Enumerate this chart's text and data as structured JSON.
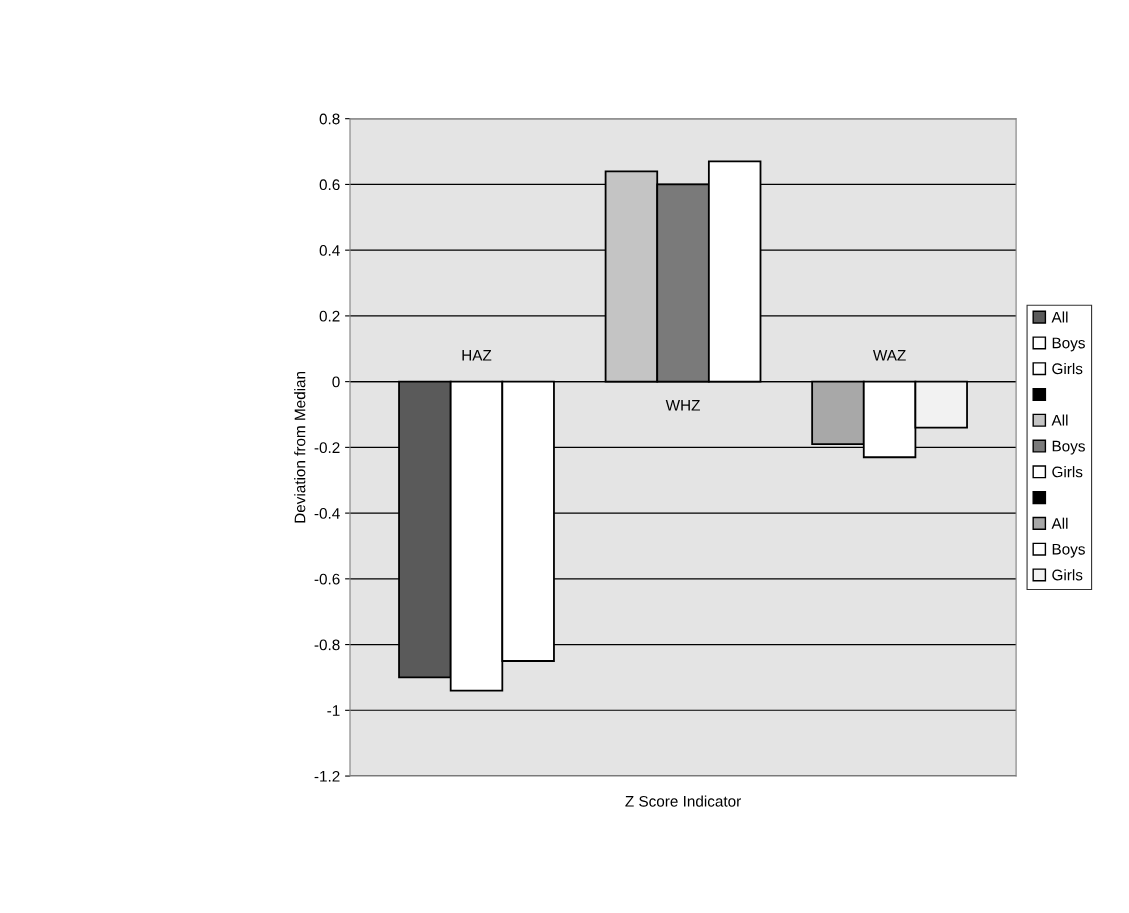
{
  "chart_data": {
    "type": "bar",
    "xlabel": "Z Score Indicator",
    "ylabel": "Deviation from Median",
    "categories": [
      null
    ],
    "series": [
      {
        "name": "All",
        "color": "#5a5a5a",
        "values": [
          -0.9
        ]
      },
      {
        "name": "Boys",
        "color": "#ffffff",
        "values": [
          -0.94
        ]
      },
      {
        "name": "Girls",
        "color": "#ffffff",
        "values": [
          -0.85
        ]
      },
      {
        "color": "#000000",
        "values": [
          null
        ]
      },
      {
        "name": "All",
        "color": "#c4c4c4",
        "values": [
          0.64
        ]
      },
      {
        "name": "Boys",
        "color": "#7a7a7a",
        "values": [
          0.6
        ]
      },
      {
        "name": "Girls",
        "color": "#ffffff",
        "values": [
          0.67
        ]
      },
      {
        "color": "#000000",
        "values": [
          null
        ]
      },
      {
        "name": "All",
        "color": "#a8a8a8",
        "values": [
          -0.19
        ]
      },
      {
        "name": "Boys",
        "color": "#ffffff",
        "values": [
          -0.23
        ]
      },
      {
        "name": "Girls",
        "color": "#f2f2f2",
        "values": [
          -0.14
        ]
      }
    ],
    "annotations": [
      "HAZ",
      "WHZ",
      "WAZ"
    ],
    "ylim": [
      -1.2,
      0.8
    ],
    "yticks": [
      -1.2,
      -1,
      -0.8,
      -0.6,
      -0.4,
      -0.2,
      0,
      0.2,
      0.4,
      0.6,
      0.8
    ],
    "grid": "y",
    "legend": "right",
    "tick_labels": "y"
  }
}
